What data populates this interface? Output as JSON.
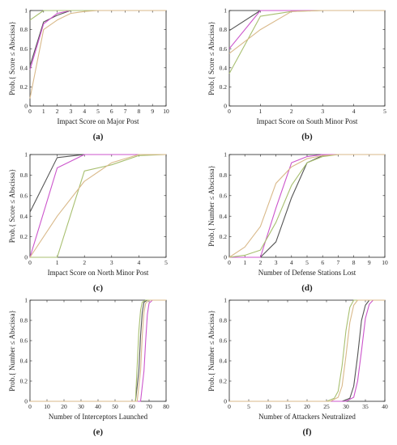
{
  "colors": {
    "dark": "#555555",
    "magenta": "#cc55cc",
    "olive": "#a8bf70",
    "tan": "#d9b98a",
    "axis": "#222222"
  },
  "chart_data": [
    {
      "type": "line",
      "panel_label": "(a)",
      "xlabel": "Impact Score on Major Post",
      "ylabel": "Prob.{ Score ≤ Abscissa}",
      "xlim": [
        0,
        10
      ],
      "ylim": [
        0,
        1
      ],
      "xticks": [
        "0",
        "1",
        "2",
        "3",
        "4",
        "5",
        "6",
        "7",
        "8",
        "9",
        "10"
      ],
      "yticks": [
        "0",
        "0.2",
        "0.4",
        "0.6",
        "0.8",
        "1"
      ],
      "series": [
        {
          "color": "dark",
          "x": [
            0,
            1,
            2,
            3,
            4,
            10
          ],
          "y": [
            0.42,
            0.88,
            0.95,
            1,
            1,
            1
          ]
        },
        {
          "color": "magenta",
          "x": [
            0,
            1,
            2,
            3,
            4,
            10
          ],
          "y": [
            0.38,
            0.86,
            0.97,
            1,
            1,
            1
          ]
        },
        {
          "color": "olive",
          "x": [
            0,
            1,
            2,
            3,
            10
          ],
          "y": [
            0.9,
            1,
            1,
            1,
            1
          ]
        },
        {
          "color": "tan",
          "x": [
            0,
            1,
            2,
            3,
            4,
            5,
            10
          ],
          "y": [
            0.08,
            0.8,
            0.9,
            0.97,
            0.99,
            1,
            1
          ]
        }
      ]
    },
    {
      "type": "line",
      "panel_label": "(b)",
      "xlabel": "Impact Score on South Minor Post",
      "ylabel": "Prob.{ Score ≤ Abscissa}",
      "xlim": [
        0,
        5
      ],
      "ylim": [
        0,
        1
      ],
      "xticks": [
        "0",
        "1",
        "2",
        "3",
        "4",
        "5"
      ],
      "yticks": [
        "0",
        "0.2",
        "0.4",
        "0.6",
        "0.8",
        "1"
      ],
      "series": [
        {
          "color": "dark",
          "x": [
            0,
            1,
            2,
            5
          ],
          "y": [
            0.79,
            1,
            1,
            1
          ]
        },
        {
          "color": "magenta",
          "x": [
            0,
            1,
            2,
            5
          ],
          "y": [
            0.6,
            1,
            1,
            1
          ]
        },
        {
          "color": "olive",
          "x": [
            0,
            1,
            2,
            3,
            5
          ],
          "y": [
            0.34,
            0.94,
            0.99,
            1,
            1
          ]
        },
        {
          "color": "tan",
          "x": [
            0,
            1,
            2,
            3,
            5
          ],
          "y": [
            0.55,
            0.8,
            0.99,
            1,
            1
          ]
        }
      ]
    },
    {
      "type": "line",
      "panel_label": "(c)",
      "xlabel": "Impact Score on North Minor Post",
      "ylabel": "Prob.{ Score ≤ Abscissa}",
      "xlim": [
        0,
        5
      ],
      "ylim": [
        0,
        1
      ],
      "xticks": [
        "0",
        "1",
        "2",
        "3",
        "4",
        "5"
      ],
      "yticks": [
        "0",
        "0.2",
        "0.4",
        "0.6",
        "0.8",
        "1"
      ],
      "series": [
        {
          "color": "dark",
          "x": [
            0,
            1,
            2,
            3,
            5
          ],
          "y": [
            0.44,
            0.97,
            1,
            1,
            1
          ]
        },
        {
          "color": "magenta",
          "x": [
            0,
            1,
            2,
            3,
            5
          ],
          "y": [
            0,
            0.87,
            1,
            1,
            1
          ]
        },
        {
          "color": "olive",
          "x": [
            0,
            1,
            2,
            3,
            4,
            5
          ],
          "y": [
            0,
            0,
            0.84,
            0.9,
            0.99,
            1
          ]
        },
        {
          "color": "tan",
          "x": [
            0,
            1,
            2,
            3,
            4,
            5
          ],
          "y": [
            0,
            0.4,
            0.74,
            0.92,
            1,
            1
          ]
        }
      ]
    },
    {
      "type": "line",
      "panel_label": "(d)",
      "xlabel": "Number of Defense Stations Lost",
      "ylabel": "Prob.{ Number ≤ Abscissa}",
      "xlim": [
        0,
        10
      ],
      "ylim": [
        0,
        1
      ],
      "xticks": [
        "0",
        "1",
        "2",
        "3",
        "4",
        "5",
        "6",
        "7",
        "8",
        "9",
        "10"
      ],
      "yticks": [
        "0",
        "0.2",
        "0.4",
        "0.6",
        "0.8",
        "1"
      ],
      "series": [
        {
          "color": "dark",
          "x": [
            0,
            2,
            3,
            4,
            5,
            6,
            7,
            10
          ],
          "y": [
            0,
            0,
            0.15,
            0.58,
            0.92,
            0.99,
            1,
            1
          ]
        },
        {
          "color": "magenta",
          "x": [
            0,
            2,
            3,
            4,
            5,
            6,
            10
          ],
          "y": [
            0,
            0,
            0.48,
            0.92,
            0.98,
            1,
            1
          ]
        },
        {
          "color": "olive",
          "x": [
            0,
            1,
            2,
            3,
            4,
            5,
            6,
            7,
            10
          ],
          "y": [
            0,
            0.02,
            0.07,
            0.34,
            0.7,
            0.92,
            0.98,
            1,
            1
          ]
        },
        {
          "color": "tan",
          "x": [
            0,
            1,
            2,
            3,
            4,
            5,
            6,
            7,
            10
          ],
          "y": [
            0,
            0.1,
            0.3,
            0.72,
            0.88,
            0.96,
            0.99,
            1,
            1
          ]
        }
      ]
    },
    {
      "type": "line",
      "panel_label": "(e)",
      "xlabel": "Number of Interceptors Launched",
      "ylabel": "Prob.{ Number ≤ Abscissa}",
      "xlim": [
        0,
        80
      ],
      "ylim": [
        0,
        1
      ],
      "xticks": [
        "0",
        "10",
        "20",
        "30",
        "40",
        "50",
        "60",
        "70",
        "80"
      ],
      "yticks": [
        "0",
        "0.2",
        "0.4",
        "0.6",
        "0.8",
        "1"
      ],
      "series": [
        {
          "color": "dark",
          "x": [
            0,
            62,
            64,
            65,
            66,
            67,
            69,
            80
          ],
          "y": [
            0,
            0,
            0.3,
            0.65,
            0.88,
            0.98,
            1,
            1
          ]
        },
        {
          "color": "magenta",
          "x": [
            0,
            65,
            67,
            68,
            69,
            70,
            72,
            80
          ],
          "y": [
            0,
            0,
            0.3,
            0.6,
            0.86,
            0.97,
            1,
            1
          ]
        },
        {
          "color": "olive",
          "x": [
            0,
            62,
            63,
            64,
            65,
            66,
            68,
            80
          ],
          "y": [
            0,
            0,
            0.35,
            0.7,
            0.9,
            0.98,
            1,
            1
          ]
        },
        {
          "color": "tan",
          "x": [
            0,
            63,
            65,
            66,
            67,
            68,
            70,
            80
          ],
          "y": [
            0,
            0,
            0.3,
            0.65,
            0.88,
            0.97,
            1,
            1
          ]
        }
      ]
    },
    {
      "type": "line",
      "panel_label": "(f)",
      "xlabel": "Number of Attackers Neutralized",
      "ylabel": "Prob.{ Number ≤ Abscissa}",
      "xlim": [
        0,
        40
      ],
      "ylim": [
        0,
        1
      ],
      "xticks": [
        "0",
        "5",
        "10",
        "15",
        "20",
        "25",
        "30",
        "35",
        "40"
      ],
      "yticks": [
        "0",
        "0.2",
        "0.4",
        "0.6",
        "0.8",
        "1"
      ],
      "series": [
        {
          "color": "dark",
          "x": [
            0,
            29,
            31,
            32,
            33,
            34,
            35,
            36,
            40
          ],
          "y": [
            0,
            0,
            0.03,
            0.15,
            0.45,
            0.8,
            0.95,
            1,
            1
          ]
        },
        {
          "color": "magenta",
          "x": [
            0,
            30,
            32,
            33,
            34,
            35,
            36,
            37,
            40
          ],
          "y": [
            0,
            0,
            0.04,
            0.2,
            0.5,
            0.82,
            0.96,
            1,
            1
          ]
        },
        {
          "color": "olive",
          "x": [
            0,
            25,
            27,
            28,
            29,
            30,
            31,
            32,
            40
          ],
          "y": [
            0,
            0,
            0.03,
            0.1,
            0.35,
            0.7,
            0.93,
            1,
            1
          ]
        },
        {
          "color": "tan",
          "x": [
            0,
            26,
            28,
            29,
            30,
            31,
            32,
            33,
            40
          ],
          "y": [
            0,
            0,
            0.04,
            0.15,
            0.45,
            0.78,
            0.95,
            1,
            1
          ]
        }
      ]
    }
  ]
}
